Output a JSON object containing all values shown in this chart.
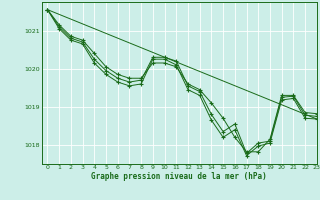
{
  "title": "Graphe pression niveau de la mer (hPa)",
  "bg_color": "#cceee8",
  "grid_color": "#ffffff",
  "line_color": "#1a6b1a",
  "xlim": [
    -0.5,
    23
  ],
  "ylim": [
    1017.5,
    1021.75
  ],
  "yticks": [
    1018,
    1019,
    1020,
    1021
  ],
  "xticks": [
    0,
    1,
    2,
    3,
    4,
    5,
    6,
    7,
    8,
    9,
    10,
    11,
    12,
    13,
    14,
    15,
    16,
    17,
    18,
    19,
    20,
    21,
    22,
    23
  ],
  "line1_x": [
    0,
    1,
    2,
    3,
    4,
    5,
    6,
    7,
    8,
    9,
    10,
    11,
    12,
    13,
    14,
    15,
    16,
    17,
    18,
    19,
    20,
    21,
    22,
    23
  ],
  "line1_y": [
    1021.55,
    1021.15,
    1020.85,
    1020.75,
    1020.4,
    1020.05,
    1019.85,
    1019.75,
    1019.75,
    1020.15,
    1020.15,
    1020.05,
    1019.6,
    1019.45,
    1019.1,
    1018.7,
    1018.2,
    1017.82,
    1017.82,
    1018.15,
    1019.3,
    1019.3,
    1018.85,
    1018.82
  ],
  "line2_x": [
    0,
    1,
    2,
    3,
    4,
    5,
    6,
    7,
    8,
    9,
    10,
    11,
    12,
    13,
    14,
    15,
    16,
    17,
    18,
    19,
    20,
    21,
    22,
    23
  ],
  "line2_y": [
    1021.55,
    1021.1,
    1020.8,
    1020.7,
    1020.25,
    1019.95,
    1019.75,
    1019.65,
    1019.7,
    1020.3,
    1020.3,
    1020.2,
    1019.55,
    1019.4,
    1018.8,
    1018.35,
    1018.55,
    1017.78,
    1018.05,
    1018.1,
    1019.25,
    1019.28,
    1018.78,
    1018.75
  ],
  "line3_x": [
    0,
    1,
    2,
    3,
    4,
    5,
    6,
    7,
    8,
    9,
    10,
    11,
    12,
    13,
    14,
    15,
    16,
    17,
    18,
    19,
    20,
    21,
    22,
    23
  ],
  "line3_y": [
    1021.55,
    1021.05,
    1020.75,
    1020.65,
    1020.15,
    1019.85,
    1019.65,
    1019.55,
    1019.6,
    1020.25,
    1020.25,
    1020.1,
    1019.45,
    1019.3,
    1018.65,
    1018.2,
    1018.4,
    1017.72,
    1017.97,
    1018.05,
    1019.18,
    1019.22,
    1018.7,
    1018.68
  ],
  "line4_x": [
    0,
    23
  ],
  "line4_y": [
    1021.55,
    1018.68
  ]
}
